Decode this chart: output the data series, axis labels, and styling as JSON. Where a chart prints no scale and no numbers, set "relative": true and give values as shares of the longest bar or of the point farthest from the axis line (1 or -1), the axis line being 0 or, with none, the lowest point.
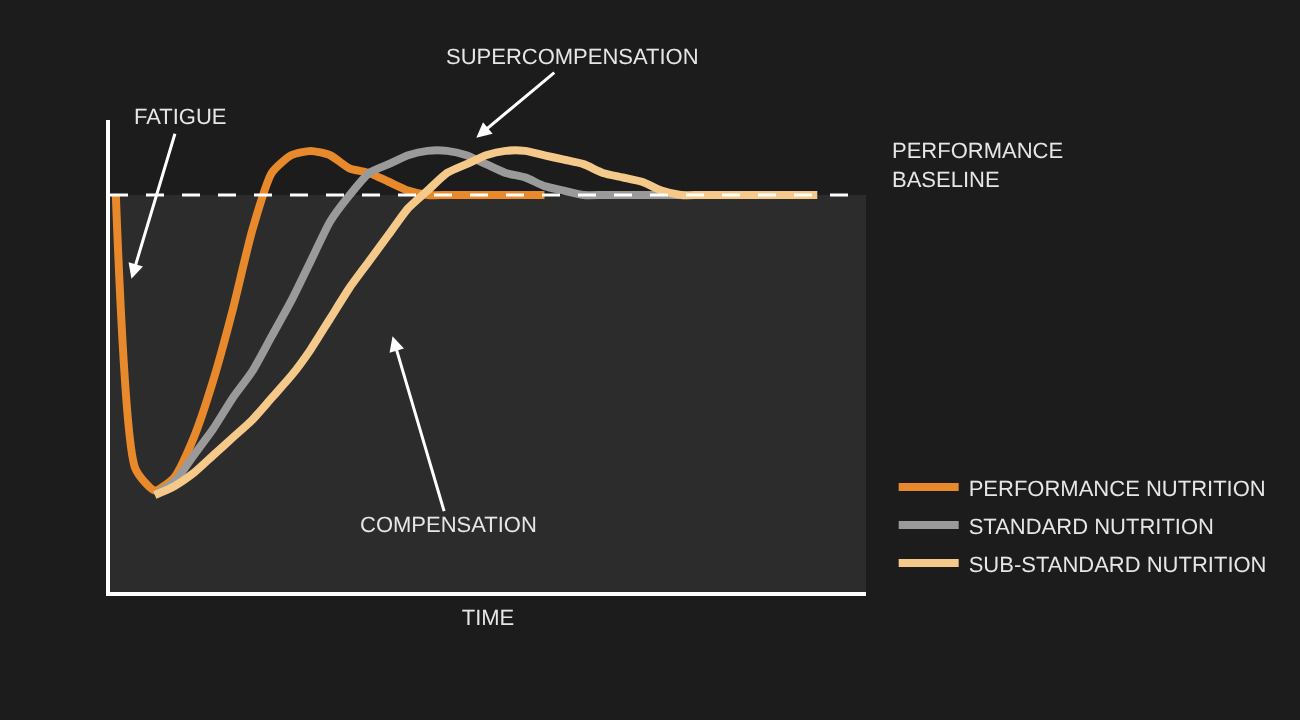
{
  "chart_data": {
    "type": "line",
    "relative": true,
    "xlabel": "TIME",
    "categories": [
      null,
      null,
      null,
      null,
      null,
      null,
      null,
      null,
      null,
      null,
      null,
      null,
      null,
      null,
      null,
      null,
      null,
      null,
      null,
      null,
      null,
      null,
      null,
      null,
      null,
      null,
      null,
      null,
      null,
      null,
      null,
      null,
      null,
      null,
      null,
      null,
      null
    ],
    "series": [
      {
        "name": "PERFORMANCE NUTRITION",
        "color": "#e8892b",
        "values": [
          0.9,
          0.28,
          0.23,
          0.26,
          0.35,
          0.48,
          0.64,
          0.82,
          0.95,
          0.99,
          1.0,
          0.99,
          0.96,
          0.95,
          0.93,
          0.91,
          0.9,
          0.9,
          0.9,
          0.9,
          0.9,
          0.9,
          0.9,
          null,
          null,
          null,
          null,
          null,
          null,
          null,
          null,
          null,
          null,
          null,
          null,
          null,
          null
        ]
      },
      {
        "name": "STANDARD NUTRITION",
        "color": "#9a9a9a",
        "values": [
          null,
          null,
          0.22,
          0.25,
          0.31,
          0.37,
          0.44,
          0.5,
          0.58,
          0.66,
          0.75,
          0.84,
          0.9,
          0.95,
          0.97,
          0.99,
          1.0,
          1.0,
          0.99,
          0.97,
          0.95,
          0.94,
          0.92,
          0.91,
          0.9,
          0.9,
          0.9,
          0.9,
          0.9,
          0.9,
          null,
          null,
          null,
          null,
          null,
          null,
          null
        ]
      },
      {
        "name": "SUB-STANDARD NUTRITION",
        "color": "#f5c98a",
        "values": [
          null,
          null,
          0.22,
          0.24,
          0.27,
          0.31,
          0.35,
          0.39,
          0.44,
          0.49,
          0.55,
          0.62,
          0.69,
          0.75,
          0.81,
          0.87,
          0.91,
          0.95,
          0.97,
          0.99,
          1.0,
          1.0,
          0.99,
          0.98,
          0.97,
          0.95,
          0.94,
          0.93,
          0.91,
          0.9,
          0.9,
          0.9,
          0.9,
          0.9,
          0.9,
          0.9,
          0.9
        ]
      }
    ],
    "ref_lines": [
      {
        "axis": "y",
        "value": 0.9,
        "label": "PERFORMANCE\nBASELINE",
        "color": "#ffffff",
        "line_style": "dashed"
      }
    ],
    "bands": [
      {
        "axis": "y",
        "from": 0,
        "to": 0.9,
        "color": "#2c2c2c"
      }
    ],
    "annotations": [
      "FATIGUE",
      "SUPERCOMPENSATION",
      "COMPENSATION"
    ],
    "legend": "bottom right",
    "marker": "none",
    "line_style": "solid"
  }
}
